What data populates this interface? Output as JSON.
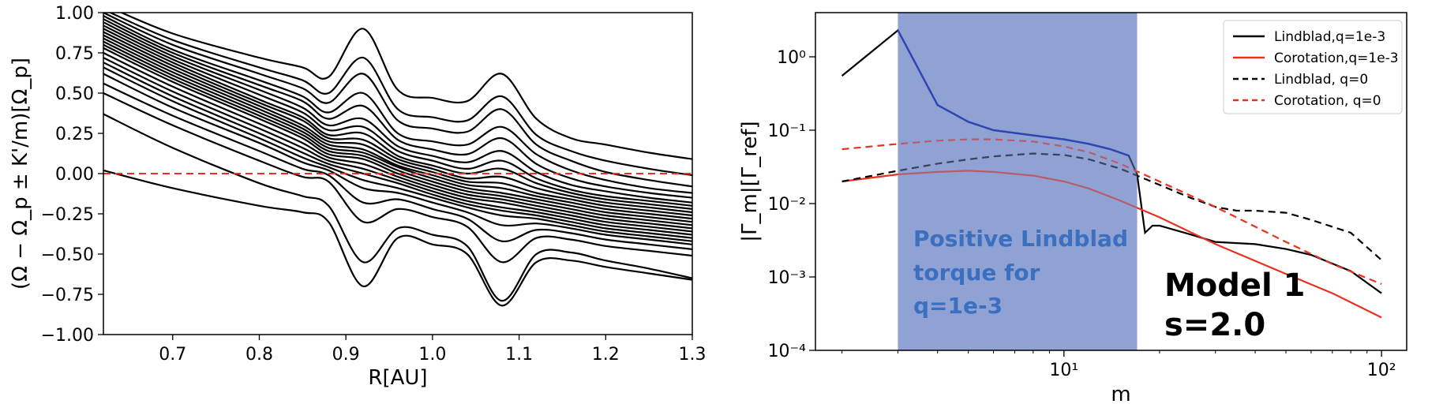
{
  "chart_data": [
    {
      "type": "line",
      "title": "",
      "xlabel": "R[AU]",
      "ylabel": "(Ω − Ω_p ± K'/m)[Ω_p]",
      "xlim": [
        0.62,
        1.3
      ],
      "ylim": [
        -1.0,
        1.0
      ],
      "xticks": [
        "0.7",
        "0.8",
        "0.9",
        "1.0",
        "1.1",
        "1.2",
        "1.3"
      ],
      "xtick_values": [
        0.7,
        0.8,
        0.9,
        1.0,
        1.1,
        1.2,
        1.3
      ],
      "yticks": [
        "−1.00",
        "−0.75",
        "−0.50",
        "−0.25",
        "0.00",
        "0.25",
        "0.50",
        "0.75",
        "1.00"
      ],
      "ytick_values": [
        -1.0,
        -0.75,
        -0.5,
        -0.25,
        0.0,
        0.25,
        0.5,
        0.75,
        1.0
      ],
      "grid": false,
      "series_color": "#000000",
      "reference_line": {
        "y": 0.0,
        "color": "#e8311f",
        "style": "dashed"
      },
      "x": [
        0.62,
        0.7,
        0.8,
        0.85,
        0.88,
        0.92,
        0.96,
        1.0,
        1.04,
        1.08,
        1.12,
        1.16,
        1.2,
        1.25,
        1.3
      ],
      "series": [
        {
          "values": [
            1.05,
            0.87,
            0.72,
            0.66,
            0.6,
            0.9,
            0.52,
            0.47,
            0.45,
            0.62,
            0.34,
            0.22,
            0.18,
            0.13,
            0.09
          ]
        },
        {
          "values": [
            1.02,
            0.83,
            0.66,
            0.58,
            0.5,
            0.72,
            0.4,
            0.35,
            0.33,
            0.48,
            0.24,
            0.14,
            0.08,
            0.03,
            -0.01
          ]
        },
        {
          "values": [
            1.0,
            0.8,
            0.62,
            0.53,
            0.44,
            0.62,
            0.33,
            0.28,
            0.26,
            0.4,
            0.18,
            0.08,
            0.01,
            -0.04,
            -0.08
          ]
        },
        {
          "values": [
            0.98,
            0.77,
            0.58,
            0.48,
            0.38,
            0.5,
            0.25,
            0.2,
            0.18,
            0.29,
            0.12,
            0.02,
            -0.04,
            -0.09,
            -0.12
          ]
        },
        {
          "values": [
            0.96,
            0.75,
            0.55,
            0.45,
            0.34,
            0.42,
            0.21,
            0.15,
            0.12,
            0.22,
            0.06,
            -0.03,
            -0.08,
            -0.12,
            -0.15
          ]
        },
        {
          "values": [
            0.94,
            0.73,
            0.52,
            0.41,
            0.3,
            0.34,
            0.17,
            0.11,
            0.07,
            0.14,
            0.01,
            -0.07,
            -0.11,
            -0.15,
            -0.18
          ]
        },
        {
          "values": [
            0.92,
            0.71,
            0.49,
            0.38,
            0.27,
            0.29,
            0.14,
            0.08,
            0.03,
            0.08,
            -0.03,
            -0.1,
            -0.14,
            -0.17,
            -0.2
          ]
        },
        {
          "values": [
            0.9,
            0.69,
            0.46,
            0.35,
            0.24,
            0.25,
            0.11,
            0.05,
            0.0,
            0.03,
            -0.06,
            -0.12,
            -0.16,
            -0.19,
            -0.22
          ]
        },
        {
          "values": [
            0.88,
            0.67,
            0.44,
            0.33,
            0.22,
            0.21,
            0.09,
            0.03,
            -0.03,
            -0.02,
            -0.09,
            -0.14,
            -0.18,
            -0.21,
            -0.24
          ]
        },
        {
          "values": [
            0.86,
            0.65,
            0.42,
            0.3,
            0.2,
            0.18,
            0.07,
            0.01,
            -0.05,
            -0.06,
            -0.12,
            -0.16,
            -0.2,
            -0.23,
            -0.26
          ]
        },
        {
          "values": [
            0.84,
            0.63,
            0.4,
            0.28,
            0.18,
            0.15,
            0.05,
            -0.01,
            -0.07,
            -0.09,
            -0.14,
            -0.18,
            -0.22,
            -0.25,
            -0.28
          ]
        },
        {
          "values": [
            0.82,
            0.61,
            0.38,
            0.26,
            0.16,
            0.13,
            0.04,
            -0.03,
            -0.09,
            -0.12,
            -0.16,
            -0.2,
            -0.24,
            -0.27,
            -0.3
          ]
        },
        {
          "values": [
            0.8,
            0.59,
            0.36,
            0.24,
            0.14,
            0.11,
            0.02,
            -0.05,
            -0.11,
            -0.14,
            -0.18,
            -0.22,
            -0.26,
            -0.29,
            -0.32
          ]
        },
        {
          "values": [
            0.78,
            0.57,
            0.34,
            0.22,
            0.12,
            0.09,
            0.0,
            -0.07,
            -0.13,
            -0.16,
            -0.2,
            -0.24,
            -0.28,
            -0.31,
            -0.34
          ]
        },
        {
          "values": [
            0.75,
            0.54,
            0.31,
            0.19,
            0.1,
            0.06,
            -0.02,
            -0.09,
            -0.15,
            -0.18,
            -0.22,
            -0.26,
            -0.3,
            -0.33,
            -0.36
          ]
        },
        {
          "values": [
            0.72,
            0.51,
            0.28,
            0.16,
            0.08,
            0.03,
            -0.04,
            -0.11,
            -0.17,
            -0.21,
            -0.24,
            -0.28,
            -0.32,
            -0.35,
            -0.38
          ]
        },
        {
          "values": [
            0.69,
            0.48,
            0.25,
            0.13,
            0.06,
            0.0,
            -0.06,
            -0.13,
            -0.19,
            -0.23,
            -0.26,
            -0.3,
            -0.34,
            -0.37,
            -0.4
          ]
        },
        {
          "values": [
            0.66,
            0.45,
            0.22,
            0.1,
            0.04,
            -0.04,
            -0.09,
            -0.15,
            -0.21,
            -0.26,
            -0.28,
            -0.32,
            -0.36,
            -0.39,
            -0.42
          ]
        },
        {
          "values": [
            0.62,
            0.41,
            0.19,
            0.07,
            0.02,
            -0.09,
            -0.12,
            -0.18,
            -0.24,
            -0.32,
            -0.31,
            -0.34,
            -0.38,
            -0.41,
            -0.44
          ]
        },
        {
          "values": [
            0.56,
            0.36,
            0.14,
            0.03,
            -0.01,
            -0.18,
            -0.16,
            -0.22,
            -0.28,
            -0.42,
            -0.35,
            -0.37,
            -0.41,
            -0.44,
            -0.47
          ]
        },
        {
          "values": [
            0.5,
            0.3,
            0.08,
            -0.02,
            -0.05,
            -0.3,
            -0.22,
            -0.27,
            -0.33,
            -0.55,
            -0.4,
            -0.41,
            -0.45,
            -0.48,
            -0.51
          ]
        },
        {
          "values": [
            0.37,
            0.16,
            -0.06,
            -0.14,
            -0.2,
            -0.55,
            -0.34,
            -0.38,
            -0.45,
            -0.79,
            -0.5,
            -0.49,
            -0.54,
            -0.59,
            -0.65
          ]
        },
        {
          "values": [
            0.02,
            -0.09,
            -0.2,
            -0.24,
            -0.3,
            -0.7,
            -0.4,
            -0.44,
            -0.5,
            -0.82,
            -0.55,
            -0.54,
            -0.58,
            -0.62,
            -0.66
          ]
        }
      ]
    },
    {
      "type": "line",
      "title": "",
      "xlabel": "m",
      "ylabel": "|Γ_m|[Γ_ref]",
      "xscale": "log",
      "yscale": "log",
      "xlim": [
        1.65,
        120
      ],
      "ylim": [
        0.0001,
        4
      ],
      "xticks": [
        "10^1",
        "10^2"
      ],
      "xtick_values": [
        10,
        100
      ],
      "yticks": [
        "10^-4",
        "10^-3",
        "10^-2",
        "10^-1",
        "10^0"
      ],
      "ytick_values": [
        0.0001,
        0.001,
        0.01,
        0.1,
        1
      ],
      "grid": false,
      "legend_position": "top-right",
      "shaded_region": {
        "x_range": [
          3,
          17
        ],
        "color": "#7f93cc"
      },
      "series": [
        {
          "name": "Lindblad,q=1e-3",
          "color": "#000000",
          "style": "solid",
          "x": [
            2,
            3,
            4,
            5,
            6,
            8,
            10,
            12,
            14,
            16,
            17,
            18,
            19,
            20,
            25,
            30,
            40,
            50,
            60,
            80,
            100
          ],
          "y": [
            0.55,
            2.3,
            0.22,
            0.13,
            0.1,
            0.085,
            0.075,
            0.065,
            0.055,
            0.045,
            0.025,
            0.004,
            0.005,
            0.005,
            0.0038,
            0.003,
            0.0028,
            0.0024,
            0.002,
            0.0012,
            0.0006
          ]
        },
        {
          "name": "Corotation,q=1e-3",
          "color": "#e8311f",
          "style": "solid",
          "x": [
            2,
            3,
            4,
            5,
            6,
            8,
            10,
            12,
            15,
            20,
            30,
            50,
            70,
            100
          ],
          "y": [
            0.02,
            0.025,
            0.027,
            0.028,
            0.027,
            0.024,
            0.02,
            0.016,
            0.011,
            0.0065,
            0.0028,
            0.0011,
            0.0006,
            0.00028
          ]
        },
        {
          "name": "Lindblad, q=0",
          "color": "#000000",
          "style": "dashed",
          "x": [
            2,
            3,
            4,
            5,
            6,
            8,
            10,
            12,
            15,
            20,
            25,
            30,
            35,
            40,
            50,
            60,
            80,
            100
          ],
          "y": [
            0.02,
            0.028,
            0.035,
            0.04,
            0.044,
            0.048,
            0.046,
            0.04,
            0.03,
            0.018,
            0.012,
            0.009,
            0.008,
            0.008,
            0.0075,
            0.006,
            0.004,
            0.0017
          ]
        },
        {
          "name": "Corotation, q=0",
          "color": "#e8311f",
          "style": "dashed",
          "x": [
            2,
            3,
            4,
            5,
            6,
            8,
            10,
            12,
            15,
            20,
            30,
            50,
            70,
            100
          ],
          "y": [
            0.055,
            0.065,
            0.072,
            0.075,
            0.075,
            0.07,
            0.06,
            0.05,
            0.035,
            0.02,
            0.009,
            0.003,
            0.0015,
            0.0008
          ]
        }
      ],
      "annotations": [
        {
          "lines": [
            "Positive Lindblad",
            "torque for",
            "q=1e-3"
          ],
          "color": "#3b6fbf"
        },
        {
          "lines": [
            "Model 1",
            "s=2.0"
          ],
          "color": "#000000"
        }
      ]
    }
  ]
}
